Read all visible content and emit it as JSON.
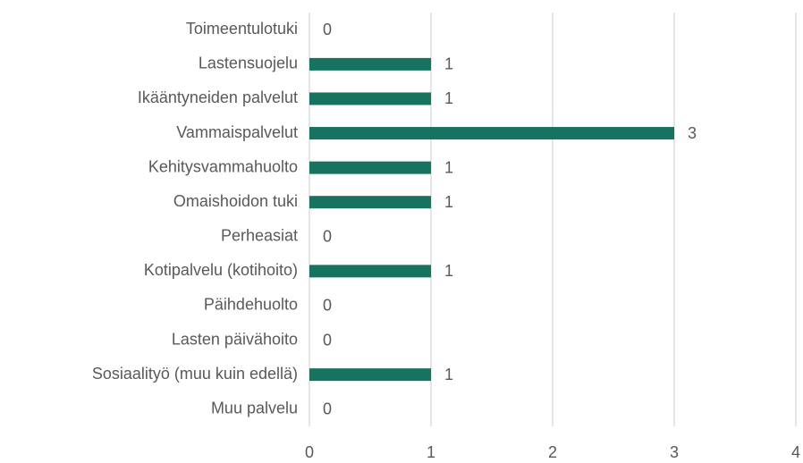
{
  "chart_data": {
    "type": "bar",
    "orientation": "horizontal",
    "categories": [
      "Toimeentulotuki",
      "Lastensuojelu",
      "Ikääntyneiden palvelut",
      "Vammaispalvelut",
      "Kehitysvammahuolto",
      "Omaishoidon tuki",
      "Perheasiat",
      "Kotipalvelu (kotihoito)",
      "Päihdehuolto",
      "Lasten päivähoito",
      "Sosiaalityö (muu kuin edellä)",
      "Muu palvelu"
    ],
    "values": [
      0,
      1,
      1,
      3,
      1,
      1,
      0,
      1,
      0,
      0,
      1,
      0
    ],
    "color": "#17725f",
    "xlim": [
      0,
      4
    ],
    "xticks": [
      0,
      1,
      2,
      3,
      4
    ],
    "grid": true,
    "data_labels": true
  }
}
